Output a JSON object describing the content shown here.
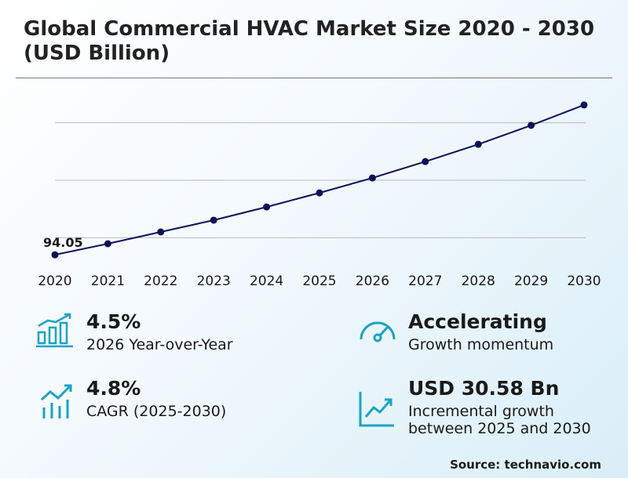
{
  "chart_data": {
    "type": "line",
    "title": "Global Commercial HVAC Market Size 2020 - 2030 (USD Billion)",
    "categories": [
      "2020",
      "2021",
      "2022",
      "2023",
      "2024",
      "2025",
      "2026",
      "2027",
      "2028",
      "2029",
      "2030"
    ],
    "values": [
      94.05,
      97.9,
      102.0,
      106.1,
      110.7,
      115.6,
      120.8,
      126.5,
      132.5,
      139.1,
      146.2
    ],
    "color": "#0d1158",
    "ylim": [
      90,
      150
    ],
    "yticks": [
      100,
      120,
      140
    ],
    "grid": true
  },
  "highlights": [
    {
      "value": "4.5%",
      "label": "2026 Year-over-Year"
    },
    {
      "value": "Accelerating",
      "label": "Growth momentum"
    },
    {
      "value": "4.8%",
      "label": "CAGR (2025-2030)"
    },
    {
      "value": "USD 30.58 Bn",
      "label": "Incremental growth between 2025 and 2030"
    }
  ],
  "source": "Source: technavio.com"
}
